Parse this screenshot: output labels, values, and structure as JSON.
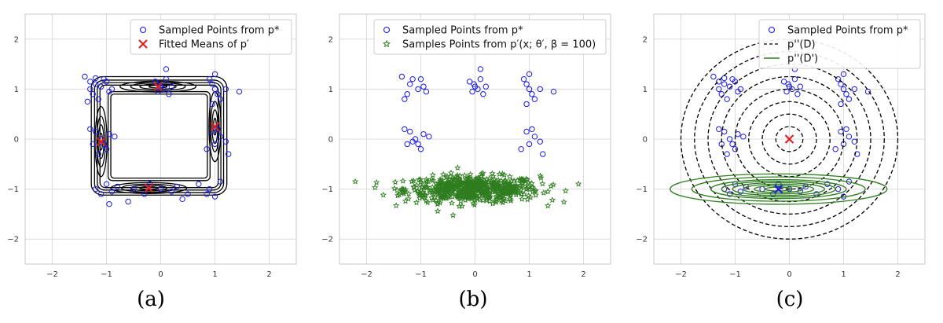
{
  "chart_data": [
    {
      "type": "scatter",
      "caption": "(a)",
      "xlim": [
        -2.5,
        2.5
      ],
      "ylim": [
        -2.5,
        2.5
      ],
      "xticks": [
        -2,
        -1,
        0,
        1,
        2
      ],
      "yticks": [
        -2,
        -1,
        0,
        1,
        2
      ],
      "grid": true,
      "legend_position": "top-right",
      "legend": [
        {
          "label": "Sampled Points from p*",
          "marker": "open-circle",
          "color": "#1a1ae6"
        },
        {
          "label": "Fitted Means of p′",
          "marker": "x",
          "color": "#e02020"
        }
      ],
      "series": [
        {
          "name": "Sampled Points from p*",
          "kind": "points",
          "color": "#1a1ae6",
          "x": [
            -1.4,
            -1.3,
            -1.2,
            -1.25,
            -1.15,
            -1.3,
            -1.05,
            -1.1,
            -0.95,
            -1.0,
            -1.2,
            -1.35,
            -0.9,
            -0.1,
            0.0,
            0.1,
            -0.05,
            0.05,
            0.15,
            0.1,
            -0.02,
            0.2,
            0.9,
            0.95,
            1.0,
            1.05,
            1.1,
            1.0,
            0.95,
            1.2,
            1.45,
            -1.05,
            -1.1,
            -1.2,
            -1.0,
            -0.95,
            -1.25,
            -0.85,
            -1.15,
            -1.3,
            0.95,
            1.1,
            1.0,
            1.2,
            1.05,
            0.85,
            1.25,
            -1.2,
            -1.1,
            -1.0,
            -0.9,
            -0.8,
            -0.5,
            -0.3,
            -0.2,
            0.0,
            0.2,
            0.3,
            0.5,
            0.7,
            0.9,
            1.0,
            1.1,
            -0.6,
            0.4,
            -0.95,
            0.85
          ],
          "y": [
            1.25,
            1.15,
            1.1,
            0.9,
            0.8,
            1.0,
            1.2,
            1.05,
            0.95,
            1.15,
            1.22,
            0.75,
            1.0,
            1.15,
            1.05,
            1.2,
            0.95,
            1.0,
            0.9,
            1.4,
            1.1,
            1.05,
            1.2,
            1.1,
            1.0,
            0.9,
            0.8,
            1.3,
            0.7,
            1.0,
            0.95,
            -0.1,
            0.0,
            0.15,
            -0.2,
            0.1,
            -0.1,
            0.05,
            -0.3,
            0.2,
            0.15,
            0.05,
            -0.1,
            -0.05,
            0.2,
            -0.2,
            -0.3,
            -1.0,
            -1.1,
            -0.9,
            -1.05,
            -0.95,
            -1.0,
            -1.1,
            -0.9,
            -1.0,
            -1.05,
            -0.95,
            -1.1,
            -0.9,
            -1.0,
            -1.15,
            -0.85,
            -1.25,
            -1.2,
            -1.3,
            -1.1
          ]
        },
        {
          "name": "Fitted Means of p′",
          "kind": "x-markers",
          "color": "#e02020",
          "x": [
            -0.05,
            -1.1,
            1.0,
            -0.22
          ],
          "y": [
            1.05,
            -0.05,
            0.25,
            -0.98
          ]
        }
      ],
      "contours": {
        "color": "#000000",
        "levels": 8
      }
    },
    {
      "type": "scatter",
      "caption": "(b)",
      "xlim": [
        -2.5,
        2.5
      ],
      "ylim": [
        -2.5,
        2.5
      ],
      "xticks": [
        -2,
        -1,
        0,
        1,
        2
      ],
      "yticks": [
        -2,
        -1,
        0,
        1,
        2
      ],
      "grid": true,
      "legend_position": "top-right",
      "legend": [
        {
          "label": "Sampled Points from p*",
          "marker": "open-circle",
          "color": "#1a1ae6"
        },
        {
          "label": "Samples Points from p′(x;  θ′,  β = 100)",
          "marker": "star",
          "color": "#2e7d1f"
        }
      ],
      "series": [
        {
          "name": "Sampled Points from p*",
          "kind": "points",
          "color": "#1a1ae6",
          "x": [
            -1.35,
            -1.3,
            -1.2,
            -1.25,
            -1.15,
            -1.05,
            -1.0,
            -0.95,
            -0.9,
            -0.1,
            0.0,
            0.1,
            -0.05,
            0.05,
            0.15,
            0.1,
            -0.02,
            0.2,
            0.9,
            0.95,
            1.0,
            1.05,
            1.1,
            1.0,
            0.95,
            1.2,
            1.45,
            -1.05,
            -1.1,
            -1.2,
            -1.0,
            -0.95,
            -1.25,
            -0.85,
            -1.15,
            -1.3,
            0.95,
            1.1,
            1.0,
            1.2,
            1.05,
            0.85,
            1.25
          ],
          "y": [
            1.25,
            0.8,
            1.1,
            0.9,
            1.2,
            1.0,
            1.2,
            1.05,
            0.95,
            1.15,
            1.05,
            1.2,
            0.95,
            1.0,
            0.9,
            1.4,
            1.1,
            1.05,
            1.2,
            1.1,
            1.0,
            0.9,
            0.8,
            1.3,
            0.7,
            1.0,
            0.95,
            -0.1,
            0.0,
            0.15,
            -0.2,
            0.1,
            -0.1,
            0.05,
            -0.05,
            0.2,
            0.15,
            0.05,
            -0.1,
            -0.05,
            0.2,
            -0.2,
            -0.3
          ]
        },
        {
          "name": "Samples Points from p′(x;  θ′,  β = 100)",
          "kind": "stars",
          "color": "#2e7d1f",
          "distribution": {
            "mean": [
              -0.05,
              -1.0
            ],
            "std": [
              0.62,
              0.13
            ],
            "count": 600
          }
        }
      ]
    },
    {
      "type": "scatter",
      "caption": "(c)",
      "xlim": [
        -2.5,
        2.5
      ],
      "ylim": [
        -2.5,
        2.5
      ],
      "xticks": [
        -2,
        -1,
        0,
        1,
        2
      ],
      "yticks": [
        -2,
        -1,
        0,
        1,
        2
      ],
      "grid": true,
      "legend_position": "top-right",
      "legend": [
        {
          "label": "Sampled Points from p*",
          "marker": "open-circle",
          "color": "#1a1ae6"
        },
        {
          "label": "p''(D)",
          "marker": "dashed-line",
          "color": "#000000"
        },
        {
          "label": "p''(D')",
          "marker": "solid-line",
          "color": "#2e7d1f"
        }
      ],
      "series": [
        {
          "name": "Sampled Points from p*",
          "kind": "points",
          "color": "#1a1ae6",
          "x": [
            -1.4,
            -1.3,
            -1.2,
            -1.25,
            -1.15,
            -1.3,
            -1.05,
            -1.1,
            -0.95,
            -1.0,
            -1.2,
            -0.9,
            -0.1,
            0.0,
            0.1,
            -0.05,
            0.05,
            0.15,
            0.1,
            -0.02,
            0.2,
            0.9,
            0.95,
            1.0,
            1.05,
            1.1,
            1.0,
            0.95,
            1.2,
            1.45,
            -1.05,
            -1.1,
            -1.2,
            -1.0,
            -0.95,
            -1.25,
            -0.85,
            -1.15,
            -1.3,
            0.95,
            1.1,
            1.0,
            1.2,
            1.05,
            0.85,
            1.25,
            -1.2,
            -1.1,
            -1.0,
            -0.9,
            -0.8,
            -0.5,
            -0.3,
            -0.2,
            0.0,
            0.2,
            0.3,
            0.5,
            0.7,
            0.9,
            1.0,
            1.1
          ],
          "y": [
            1.25,
            1.15,
            1.1,
            0.9,
            0.8,
            1.0,
            1.2,
            1.05,
            0.95,
            1.15,
            1.22,
            1.0,
            1.15,
            1.05,
            1.2,
            0.95,
            1.0,
            0.9,
            1.4,
            1.1,
            1.05,
            1.2,
            1.1,
            1.0,
            0.9,
            0.8,
            1.3,
            0.7,
            1.0,
            0.95,
            -0.1,
            0.0,
            0.15,
            -0.2,
            0.1,
            -0.1,
            0.05,
            -0.3,
            0.2,
            0.15,
            0.05,
            -0.1,
            -0.05,
            0.2,
            -0.2,
            -0.3,
            -1.0,
            -1.1,
            -0.9,
            -1.05,
            -0.95,
            -1.0,
            -1.1,
            -0.9,
            -1.0,
            -1.05,
            -0.95,
            -1.1,
            -0.9,
            -1.0,
            -1.15,
            -0.85
          ]
        },
        {
          "name": "p''(D)",
          "kind": "dashed-circles",
          "color": "#000000",
          "center": [
            0.0,
            0.0
          ],
          "radii": [
            0.25,
            0.5,
            0.75,
            1.0,
            1.25,
            1.5,
            1.75,
            2.0
          ]
        },
        {
          "name": "p''(D')",
          "kind": "ellipses",
          "color": "#2e7d1f",
          "center": [
            -0.2,
            -1.0
          ],
          "rx": [
            0.25,
            0.45,
            0.65,
            0.85,
            1.05,
            1.25,
            1.6,
            2.0
          ],
          "ry_ratio": 0.14
        },
        {
          "name": "centers",
          "kind": "x-markers",
          "colors": [
            "#e02020",
            "#1a1ae6"
          ],
          "x": [
            0.0,
            -0.2
          ],
          "y": [
            0.0,
            -1.0
          ]
        }
      ]
    }
  ]
}
